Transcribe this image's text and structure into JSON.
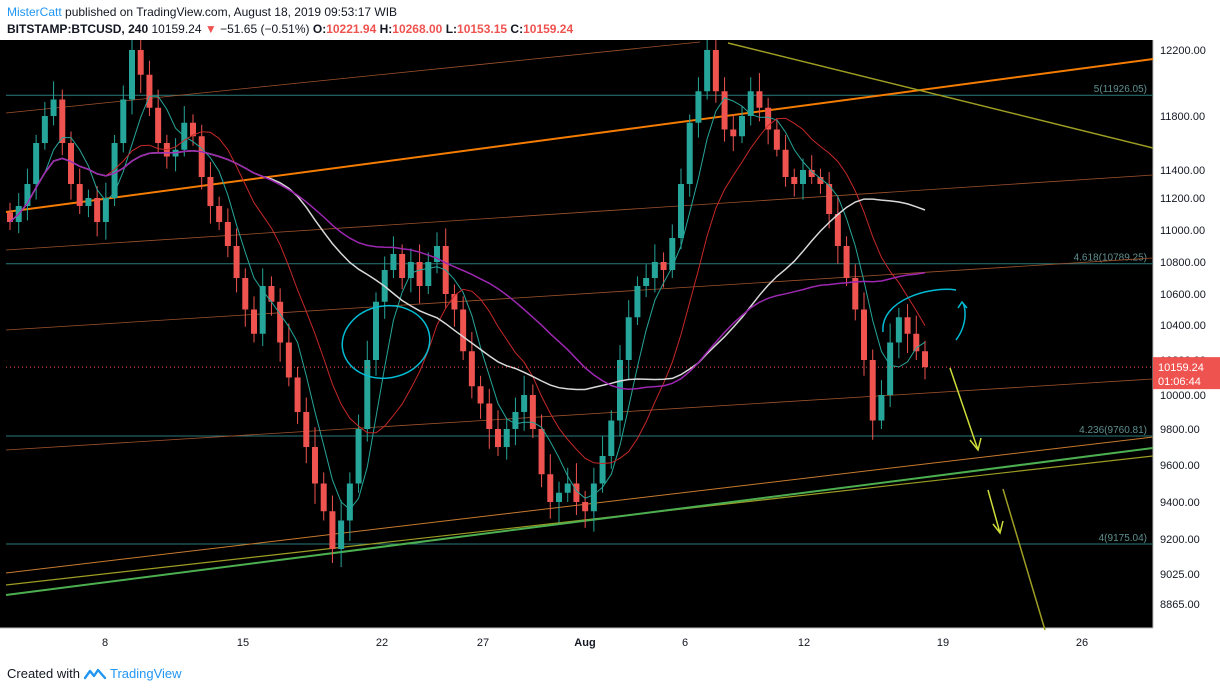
{
  "header": {
    "author": "MisterCatt",
    "published_text": "published on TradingView.com, August 18, 2019 09:53:17 WIB",
    "symbol": "BITSTAMP:BTCUSD, 240",
    "last_price": "10159.24",
    "change_arrow": "▼",
    "change": "−51.65 (−0.51%)",
    "open_label": "O:",
    "open": "10221.94",
    "high_label": "H:",
    "high": "10268.00",
    "low_label": "L:",
    "low": "10153.15",
    "close_label": "C:",
    "close": "10159.24"
  },
  "footer": {
    "created_with": "Created with",
    "brand": "TradingView"
  },
  "colors": {
    "background": "#000000",
    "up": "#26a69a",
    "down": "#ef5350",
    "fib": "#2a7a7a",
    "orange": "#f57c00",
    "green": "#4caf50",
    "olive": "#9e9d24",
    "white_ma": "#d9d9d9",
    "purple_ma": "#9c27b0",
    "red_ma": "#c62828",
    "cyan": "#00bcd4"
  },
  "chart_data": {
    "type": "candlestick",
    "symbol": "BITSTAMP:BTCUSD",
    "interval": "240",
    "y_axis_labels": [
      "12200.00",
      "11800.00",
      "11400.00",
      "11200.00",
      "11000.00",
      "10800.00",
      "10600.00",
      "10400.00",
      "10200.00",
      "10000.00",
      "9800.00",
      "9600.00",
      "9400.00",
      "9200.00",
      "9025.00",
      "8865.00"
    ],
    "x_axis_labels": [
      "8",
      "15",
      "22",
      "27",
      "Aug",
      "6",
      "12",
      "19",
      "26"
    ],
    "current_price_label": "10159.24",
    "countdown": "01:06:44",
    "fib_levels": [
      {
        "label": "5(11926.05)",
        "price": 11926.05
      },
      {
        "label": "4.618(10789.25)",
        "price": 10789.25
      },
      {
        "label": "4.236(9760.81)",
        "price": 9760.81
      },
      {
        "label": "4(9175.04)",
        "price": 9175.04
      }
    ],
    "closes_approx": [
      11050,
      11150,
      11300,
      11600,
      11800,
      11900,
      11600,
      11300,
      11150,
      11200,
      11050,
      11200,
      11600,
      11900,
      12200,
      12050,
      11850,
      11600,
      11500,
      11550,
      11750,
      11650,
      11350,
      11150,
      11050,
      10900,
      10700,
      10500,
      10350,
      10650,
      10550,
      10300,
      10100,
      9900,
      9700,
      9500,
      9350,
      9150,
      9300,
      9500,
      9800,
      10200,
      10550,
      10750,
      10850,
      10700,
      10800,
      10650,
      10800,
      10900,
      10600,
      10500,
      10250,
      10050,
      9950,
      9800,
      9700,
      9800,
      9900,
      10000,
      9800,
      9550,
      9400,
      9450,
      9500,
      9400,
      9350,
      9500,
      9650,
      9850,
      10200,
      10450,
      10650,
      10700,
      10800,
      10750,
      10950,
      11300,
      11750,
      11950,
      12200,
      11950,
      11700,
      11650,
      11800,
      11950,
      11850,
      11700,
      11550,
      11350,
      11300,
      11400,
      11350,
      11300,
      11100,
      10900,
      10700,
      10500,
      10200,
      9850,
      10000,
      10300,
      10450,
      10350,
      10250,
      10159.24
    ]
  }
}
